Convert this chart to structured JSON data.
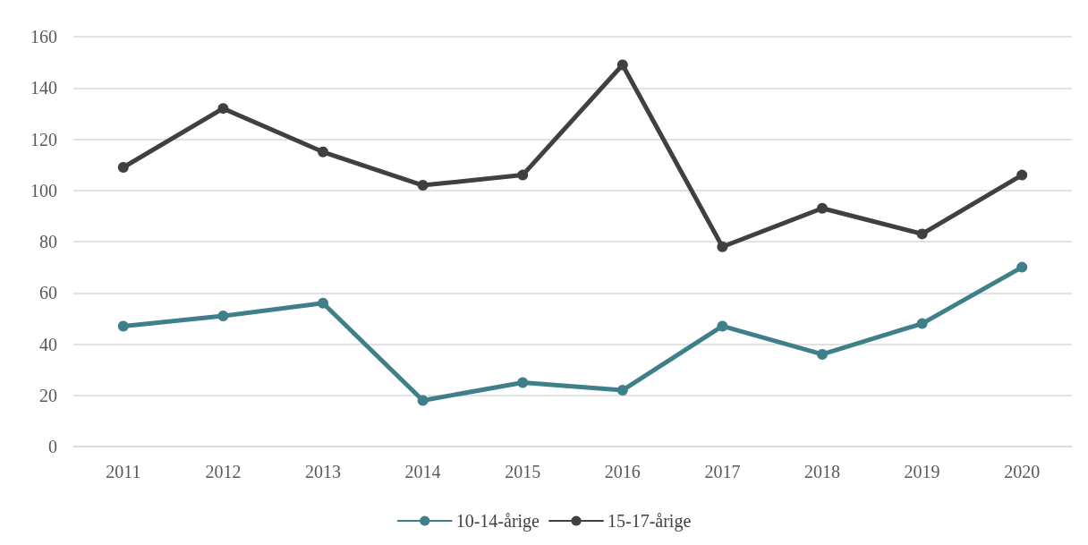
{
  "chart_data": {
    "type": "line",
    "categories": [
      "2011",
      "2012",
      "2013",
      "2014",
      "2015",
      "2016",
      "2017",
      "2018",
      "2019",
      "2020"
    ],
    "series": [
      {
        "name": "10-14-årige",
        "color": "#3e7f89",
        "values": [
          47,
          51,
          56,
          18,
          25,
          22,
          47,
          36,
          48,
          70
        ]
      },
      {
        "name": "15-17-årige",
        "color": "#404040",
        "values": [
          109,
          132,
          115,
          102,
          106,
          149,
          78,
          93,
          83,
          106
        ]
      }
    ],
    "ylim": [
      0,
      160
    ],
    "yticks": [
      0,
      20,
      40,
      60,
      80,
      100,
      120,
      140,
      160
    ],
    "grid": "y",
    "legend": "bottom",
    "marker": "circle",
    "line_style": "solid"
  }
}
